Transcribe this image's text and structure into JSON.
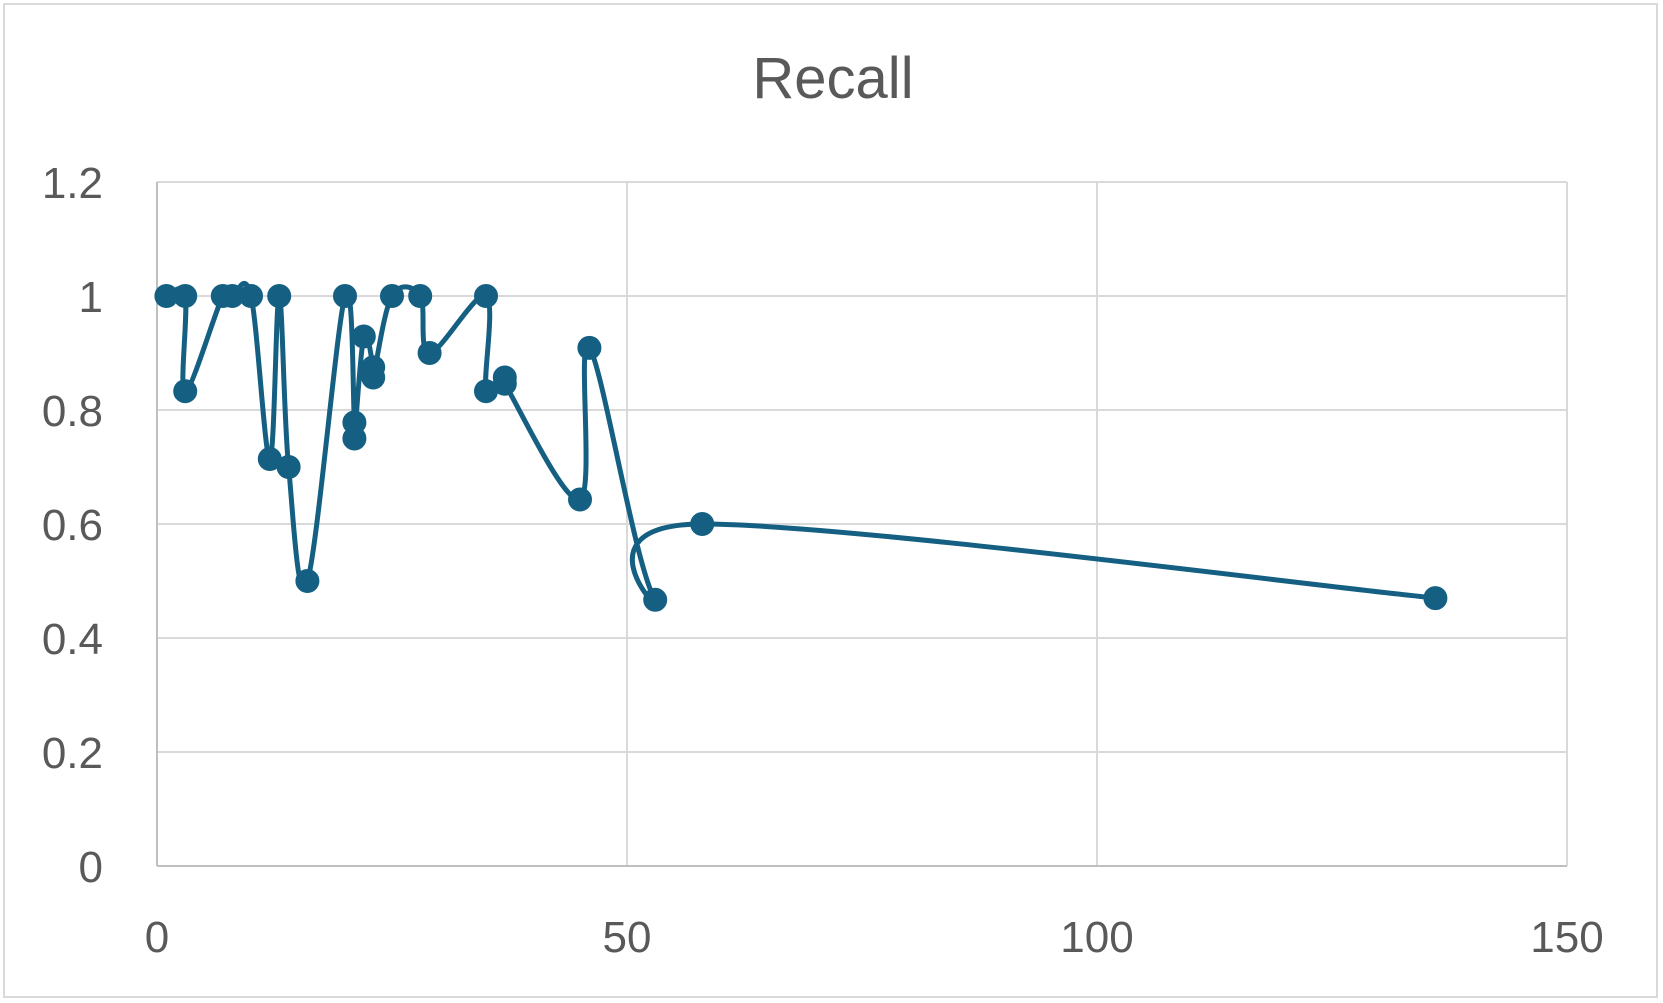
{
  "chart_data": {
    "type": "scatter",
    "title": "Recall",
    "xlabel": "",
    "ylabel": "",
    "xlim": [
      0,
      150
    ],
    "ylim": [
      0,
      1.2
    ],
    "x_ticks": [
      0,
      50,
      100,
      150
    ],
    "y_ticks": [
      0,
      0.2,
      0.4,
      0.6,
      0.8,
      1,
      1.2
    ],
    "x_tick_labels": [
      "0",
      "50",
      "100",
      "150"
    ],
    "y_tick_labels": [
      "0",
      "0.2",
      "0.4",
      "0.6",
      "0.8",
      "1",
      "1.2"
    ],
    "grid": true,
    "legend": "none",
    "smooth": true,
    "color": "#156082",
    "series": [
      {
        "points": [
          [
            1,
            1
          ],
          [
            3,
            1
          ],
          [
            3,
            0.833
          ],
          [
            7,
            1
          ],
          [
            8,
            1
          ],
          [
            10,
            1
          ],
          [
            12,
            0.714
          ],
          [
            13,
            1
          ],
          [
            14,
            0.7
          ],
          [
            16,
            0.5
          ],
          [
            20,
            1
          ],
          [
            21,
            0.778
          ],
          [
            21,
            0.75
          ],
          [
            22,
            0.929
          ],
          [
            23,
            0.875
          ],
          [
            23,
            0.857
          ],
          [
            25,
            1
          ],
          [
            28,
            1
          ],
          [
            29,
            0.9
          ],
          [
            35,
            1
          ],
          [
            35,
            0.833
          ],
          [
            37,
            0.857
          ],
          [
            37,
            0.846
          ],
          [
            45,
            0.643
          ],
          [
            46,
            0.909
          ],
          [
            53,
            0.467
          ],
          [
            58,
            0.6
          ],
          [
            136,
            0.47
          ]
        ]
      }
    ]
  }
}
